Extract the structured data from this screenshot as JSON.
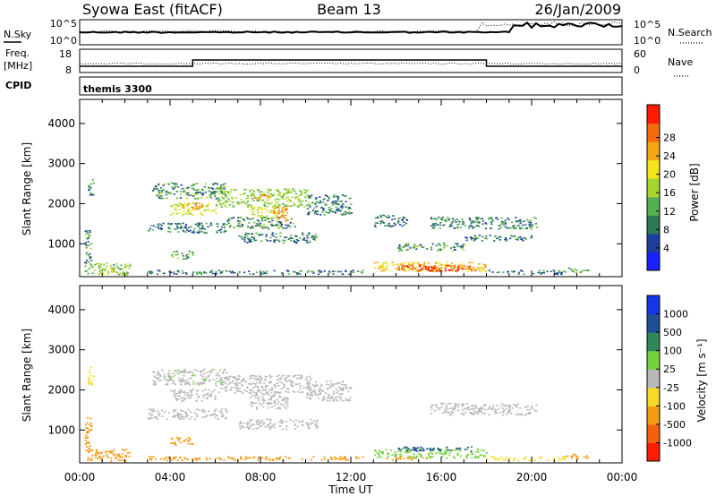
{
  "header": {
    "station": "Syowa East (fitACF)",
    "beam": "Beam 13",
    "date": "26/Jan/2009"
  },
  "top_panels": {
    "nsky_label": "N.Sky",
    "nsky_ticks": [
      "10^5",
      "10^0"
    ],
    "nsearch_label": "N.Search",
    "freq_label_line1": "Freq.",
    "freq_label_line2": "[MHz]",
    "freq_ticks": [
      "18",
      "8"
    ],
    "nave_label": "Nave",
    "nave_ticks": [
      "60",
      "0"
    ],
    "cpid_label": "CPID",
    "cpid_value": "themis 3300"
  },
  "colors": {
    "power": [
      "#1a20ff",
      "#1c3f9c",
      "#2d7a55",
      "#55b050",
      "#a6d62e",
      "#f4e41a",
      "#f4a512",
      "#f46b0c",
      "#ff1a00"
    ],
    "velocity": [
      "#1636e8",
      "#1e4f95",
      "#31865a",
      "#74d23c",
      "#b9b9b9",
      "#f5db27",
      "#f59c14",
      "#f3610c",
      "#ff1d05"
    ]
  },
  "chart_data": [
    {
      "type": "heatmap",
      "panel": "power",
      "xlabel": "",
      "ylabel": "Slant Range [km]",
      "x_ticks": [
        "00:00",
        "04:00",
        "08:00",
        "12:00",
        "16:00",
        "20:00",
        "00:00"
      ],
      "y_ticks": [
        1000,
        2000,
        3000,
        4000
      ],
      "xlim": [
        0,
        24
      ],
      "ylim": [
        180,
        4600
      ],
      "colorbar_label": "Power [dB]",
      "colorbar_ticks": [
        4,
        8,
        12,
        16,
        20,
        24,
        28
      ],
      "colorbar_range": [
        0,
        30
      ],
      "regions": [
        {
          "t": [
            0.2,
            2.2
          ],
          "r": [
            200,
            500
          ],
          "v": 8
        },
        {
          "t": [
            0.8,
            1.6
          ],
          "r": [
            220,
            400
          ],
          "v": 12
        },
        {
          "t": [
            0.2,
            0.5
          ],
          "r": [
            500,
            1400
          ],
          "v": 6
        },
        {
          "t": [
            0.35,
            0.6
          ],
          "r": [
            2100,
            2600
          ],
          "v": 5
        },
        {
          "t": [
            3.2,
            6.5
          ],
          "r": [
            2100,
            2500
          ],
          "v": 6
        },
        {
          "t": [
            4.0,
            6.0
          ],
          "r": [
            1700,
            2000
          ],
          "v": 12
        },
        {
          "t": [
            4.4,
            5.4
          ],
          "r": [
            1850,
            2000
          ],
          "v": 20
        },
        {
          "t": [
            6.0,
            10.2
          ],
          "r": [
            1900,
            2350
          ],
          "v": 9
        },
        {
          "t": [
            7.5,
            9.0
          ],
          "r": [
            1600,
            1900
          ],
          "v": 11
        },
        {
          "t": [
            8.5,
            9.2
          ],
          "r": [
            1500,
            1900
          ],
          "v": 21
        },
        {
          "t": [
            7.6,
            8.4
          ],
          "r": [
            2050,
            2200
          ],
          "v": 18
        },
        {
          "t": [
            3.0,
            6.5
          ],
          "r": [
            1250,
            1500
          ],
          "v": 5
        },
        {
          "t": [
            6.5,
            9.5
          ],
          "r": [
            1350,
            1650
          ],
          "v": 6
        },
        {
          "t": [
            7.0,
            10.5
          ],
          "r": [
            1000,
            1250
          ],
          "v": 5
        },
        {
          "t": [
            4.0,
            5.0
          ],
          "r": [
            600,
            800
          ],
          "v": 7
        },
        {
          "t": [
            10.0,
            12.0
          ],
          "r": [
            1700,
            2200
          ],
          "v": 5
        },
        {
          "t": [
            3.0,
            12.5
          ],
          "r": [
            220,
            320
          ],
          "v": 5
        },
        {
          "t": [
            13.0,
            14.5
          ],
          "r": [
            1400,
            1700
          ],
          "v": 5
        },
        {
          "t": [
            15.5,
            20.2
          ],
          "r": [
            1350,
            1650
          ],
          "v": 5
        },
        {
          "t": [
            17.0,
            20.0
          ],
          "r": [
            1050,
            1200
          ],
          "v": 5
        },
        {
          "t": [
            14.0,
            17.0
          ],
          "r": [
            800,
            1000
          ],
          "v": 6
        },
        {
          "t": [
            13.0,
            18.0
          ],
          "r": [
            280,
            520
          ],
          "v": 16
        },
        {
          "t": [
            14.0,
            17.5
          ],
          "r": [
            300,
            450
          ],
          "v": 22
        },
        {
          "t": [
            15.0,
            16.8
          ],
          "r": [
            300,
            420
          ],
          "v": 28
        },
        {
          "t": [
            18.0,
            21.5
          ],
          "r": [
            220,
            320
          ],
          "v": 5
        },
        {
          "t": [
            21.5,
            22.5
          ],
          "r": [
            250,
            380
          ],
          "v": 8
        }
      ]
    },
    {
      "type": "heatmap",
      "panel": "velocity",
      "xlabel": "Time UT",
      "ylabel": "Slant Range [km]",
      "x_ticks": [
        "00:00",
        "04:00",
        "08:00",
        "12:00",
        "16:00",
        "20:00",
        "00:00"
      ],
      "y_ticks": [
        1000,
        2000,
        3000,
        4000
      ],
      "xlim": [
        0,
        24
      ],
      "ylim": [
        180,
        4600
      ],
      "colorbar_label": "Velocity [m s⁻¹]",
      "colorbar_ticks": [
        1000,
        500,
        100,
        25,
        -25,
        -100,
        -500,
        -1000
      ],
      "colorbar_range": [
        -1200,
        1200
      ],
      "regions": [
        {
          "t": [
            0.2,
            2.2
          ],
          "r": [
            200,
            500
          ],
          "v": -300
        },
        {
          "t": [
            0.2,
            0.5
          ],
          "r": [
            500,
            1400
          ],
          "v": -150
        },
        {
          "t": [
            0.35,
            0.6
          ],
          "r": [
            2100,
            2600
          ],
          "v": -60
        },
        {
          "t": [
            3.2,
            6.5
          ],
          "r": [
            2100,
            2500
          ],
          "v": 10
        },
        {
          "t": [
            4.0,
            6.0
          ],
          "r": [
            1700,
            2000
          ],
          "v": 0
        },
        {
          "t": [
            6.0,
            10.2
          ],
          "r": [
            1900,
            2350
          ],
          "v": 5
        },
        {
          "t": [
            7.5,
            9.2
          ],
          "r": [
            1500,
            1900
          ],
          "v": -5
        },
        {
          "t": [
            3.0,
            6.5
          ],
          "r": [
            1250,
            1500
          ],
          "v": 0
        },
        {
          "t": [
            7.0,
            10.5
          ],
          "r": [
            1000,
            1250
          ],
          "v": 0
        },
        {
          "t": [
            4.0,
            5.0
          ],
          "r": [
            600,
            800
          ],
          "v": -150
        },
        {
          "t": [
            10.0,
            12.0
          ],
          "r": [
            1700,
            2200
          ],
          "v": 0
        },
        {
          "t": [
            3.0,
            12.5
          ],
          "r": [
            220,
            320
          ],
          "v": -200
        },
        {
          "t": [
            15.5,
            20.2
          ],
          "r": [
            1350,
            1650
          ],
          "v": 5
        },
        {
          "t": [
            13.0,
            18.0
          ],
          "r": [
            280,
            520
          ],
          "v": 60
        },
        {
          "t": [
            14.0,
            17.5
          ],
          "r": [
            450,
            560
          ],
          "v": 700
        },
        {
          "t": [
            13.5,
            15.5
          ],
          "r": [
            230,
            300
          ],
          "v": -150
        },
        {
          "t": [
            18.0,
            21.5
          ],
          "r": [
            220,
            320
          ],
          "v": -60
        },
        {
          "t": [
            21.5,
            22.5
          ],
          "r": [
            250,
            380
          ],
          "v": -250
        }
      ]
    }
  ]
}
